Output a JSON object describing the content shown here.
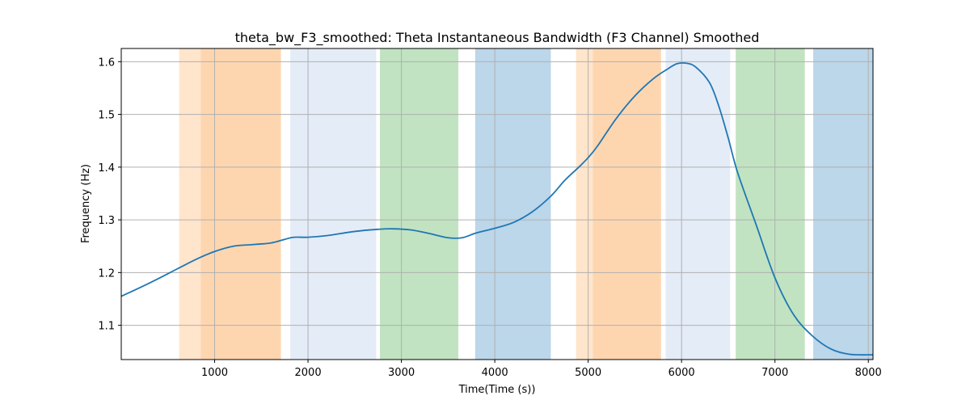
{
  "chart_data": {
    "type": "line",
    "title": "theta_bw_F3_smoothed: Theta Instantaneous Bandwidth (F3 Channel) Smoothed",
    "xlabel": "Time(Time (s))",
    "ylabel": "Frequency (Hz)",
    "xlim": [
      0,
      8050
    ],
    "ylim": [
      1.035,
      1.625
    ],
    "xticks": [
      1000,
      2000,
      3000,
      4000,
      5000,
      6000,
      7000,
      8000
    ],
    "xtick_labels": [
      "1000",
      "2000",
      "3000",
      "4000",
      "5000",
      "6000",
      "7000",
      "8000"
    ],
    "yticks": [
      1.1,
      1.2,
      1.3,
      1.4,
      1.5,
      1.6
    ],
    "ytick_labels": [
      "1.1",
      "1.2",
      "1.3",
      "1.4",
      "1.5",
      "1.6"
    ],
    "grid": true,
    "colors": {
      "line": "#1f77b4",
      "light_orange": "#ffe5cc",
      "orange": "#fdd6b0",
      "light_blue": "#e4ecf7",
      "green": "#c1e3c1",
      "blue": "#bcd6ea",
      "grid": "#b0b0b0"
    },
    "bands": [
      {
        "x0": 620,
        "x1": 850,
        "color": "light_orange"
      },
      {
        "x0": 850,
        "x1": 1710,
        "color": "orange"
      },
      {
        "x0": 1810,
        "x1": 2730,
        "color": "light_blue"
      },
      {
        "x0": 2770,
        "x1": 3610,
        "color": "green"
      },
      {
        "x0": 3790,
        "x1": 4600,
        "color": "blue"
      },
      {
        "x0": 4870,
        "x1": 5050,
        "color": "light_orange"
      },
      {
        "x0": 5050,
        "x1": 5780,
        "color": "orange"
      },
      {
        "x0": 5830,
        "x1": 6520,
        "color": "light_blue"
      },
      {
        "x0": 6580,
        "x1": 7320,
        "color": "green"
      },
      {
        "x0": 7410,
        "x1": 8050,
        "color": "blue"
      }
    ],
    "series": [
      {
        "x": [
          0,
          300,
          600,
          800,
          1000,
          1200,
          1400,
          1600,
          1750,
          1850,
          2000,
          2200,
          2500,
          2750,
          2900,
          3100,
          3300,
          3500,
          3650,
          3800,
          4000,
          4200,
          4400,
          4600,
          4750,
          4900,
          5000,
          5100,
          5300,
          5500,
          5700,
          5850,
          5950,
          6050,
          6150,
          6300,
          6400,
          6500,
          6600,
          6800,
          7000,
          7200,
          7400,
          7600,
          7800,
          8050
        ],
        "y": [
          1.155,
          1.18,
          1.207,
          1.225,
          1.24,
          1.25,
          1.253,
          1.256,
          1.263,
          1.267,
          1.267,
          1.27,
          1.278,
          1.282,
          1.283,
          1.281,
          1.274,
          1.266,
          1.266,
          1.275,
          1.284,
          1.295,
          1.315,
          1.345,
          1.375,
          1.4,
          1.418,
          1.44,
          1.492,
          1.535,
          1.568,
          1.586,
          1.596,
          1.597,
          1.59,
          1.56,
          1.515,
          1.455,
          1.39,
          1.29,
          1.19,
          1.12,
          1.08,
          1.055,
          1.045,
          1.044
        ]
      }
    ]
  }
}
